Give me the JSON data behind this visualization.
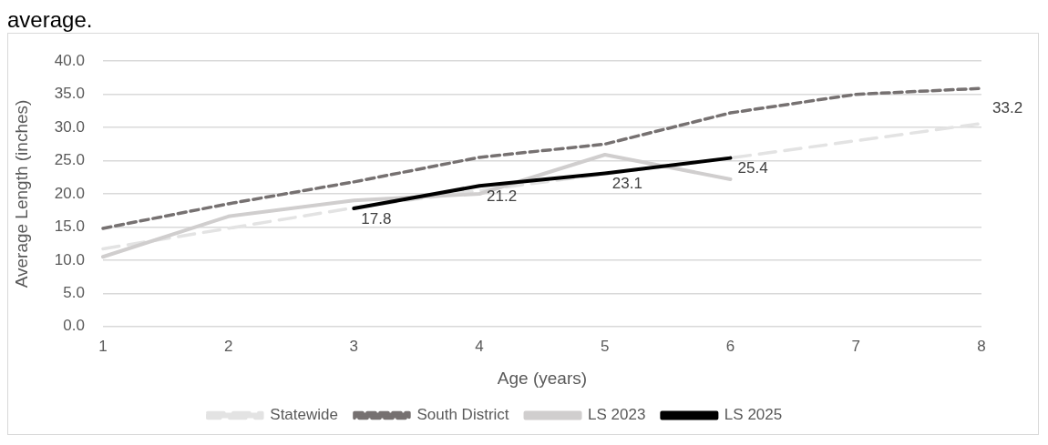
{
  "chart_data": {
    "type": "line",
    "categories": [
      "1",
      "2",
      "3",
      "4",
      "5",
      "6",
      "7",
      "8"
    ],
    "xlabel": "Age (years)",
    "ylabel": "Average Length (inches)",
    "ylim": [
      0,
      40
    ],
    "yticks": [
      {
        "value": 0,
        "label": "0.0"
      },
      {
        "value": 5,
        "label": "5.0"
      },
      {
        "value": 10,
        "label": "10.0"
      },
      {
        "value": 15,
        "label": "15.0"
      },
      {
        "value": 20,
        "label": "20.0"
      },
      {
        "value": 25,
        "label": "25.0"
      },
      {
        "value": 30,
        "label": "30.0"
      },
      {
        "value": 35,
        "label": "35.0"
      },
      {
        "value": 40,
        "label": "40.0"
      }
    ],
    "grid": "y",
    "legend": "bottom",
    "marker": "none",
    "annotations": [
      "average.",
      "33.2"
    ],
    "series": [
      {
        "name": "Statewide",
        "color": "#e3e3e3",
        "line_style": "dashed",
        "values": [
          11.7,
          14.8,
          17.9,
          20.5,
          23.0,
          25.4,
          28.0,
          30.6
        ]
      },
      {
        "name": "South District",
        "color": "#767171",
        "line_style": "dotted",
        "values": [
          14.8,
          18.5,
          21.8,
          25.5,
          27.5,
          32.2,
          35.0,
          35.9
        ]
      },
      {
        "name": "LS 2023",
        "color": "#d0cece",
        "line_style": "solid",
        "values": [
          10.5,
          16.6,
          19.0,
          20.0,
          25.9,
          22.2,
          null,
          null
        ]
      },
      {
        "name": "LS 2025",
        "color": "#000000",
        "line_style": "solid",
        "values": [
          null,
          null,
          17.8,
          21.2,
          23.1,
          25.4,
          null,
          null
        ],
        "value_labels": [
          null,
          null,
          "17.8",
          "21.2",
          "23.1",
          "25.4",
          null,
          null
        ]
      }
    ]
  }
}
